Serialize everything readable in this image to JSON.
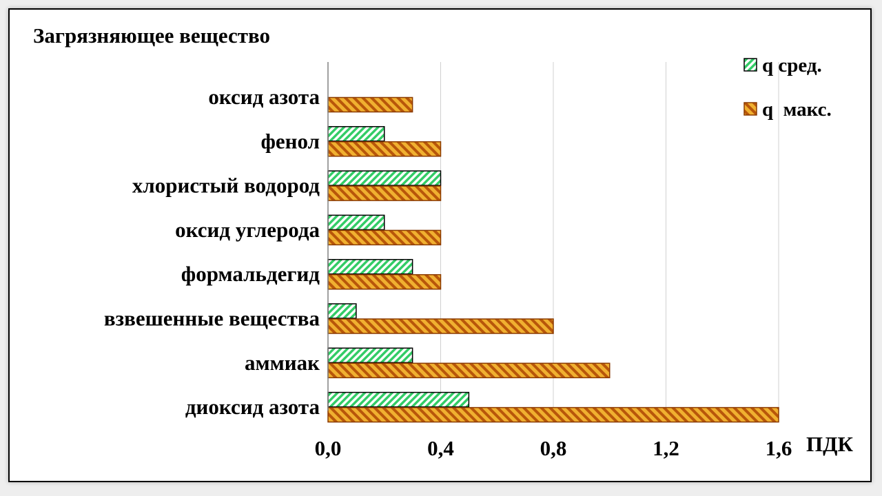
{
  "chart_data": {
    "type": "bar",
    "orientation": "horizontal",
    "title": "Загрязняющее вещество",
    "xlabel": "ПДК",
    "ylabel": "",
    "xlim": [
      0,
      1.6
    ],
    "xticks": [
      "0,0",
      "0,4",
      "0,8",
      "1,2",
      "1,6"
    ],
    "xtick_values": [
      0,
      0.4,
      0.8,
      1.2,
      1.6
    ],
    "grid": true,
    "legend_position": "top-right",
    "categories": [
      "оксид азота",
      "фенол",
      "хлористый водород",
      "оксид углерода",
      "формальдегид",
      "взвешенные вещества",
      "аммиак",
      "диоксид азота"
    ],
    "series": [
      {
        "name": "q сред.",
        "color": "#33cc66",
        "values": [
          null,
          0.2,
          0.4,
          0.2,
          0.3,
          0.1,
          0.3,
          0.5
        ]
      },
      {
        "name": "q  макс.",
        "color": "#e8a020",
        "values": [
          0.3,
          0.4,
          0.4,
          0.4,
          0.4,
          0.8,
          1.0,
          1.6
        ]
      }
    ]
  }
}
